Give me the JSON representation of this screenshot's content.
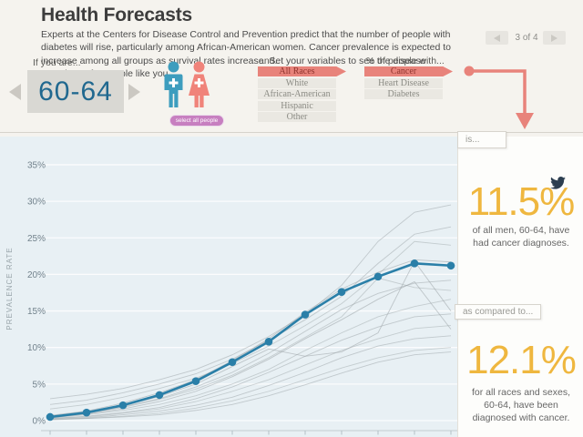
{
  "header": {
    "title": "Health Forecasts",
    "description": "Experts at the Centers for Disease Control and Prevention predict that the number of people with diabetes will rise, particularly among African-American women. Cancer prevalence is expected to increase among all groups as survival rates increase. Set your variables to see the disease prevalence for people like you.",
    "pagination": {
      "label": "3 of 4",
      "prev_icon": "chevron-left",
      "next_icon": "chevron-right"
    }
  },
  "controls": {
    "age": {
      "label": "If you are...",
      "value": "60-64",
      "prev_icon": "chevron-left",
      "next_icon": "chevron-right"
    },
    "people": {
      "button_label": "select all people",
      "icons": [
        "male-figure",
        "female-figure"
      ]
    },
    "race": {
      "label": "and..",
      "options": [
        "All Races",
        "White",
        "African-American",
        "Hispanic",
        "Other"
      ],
      "selected": "All Races"
    },
    "disease": {
      "label": "% of people with...",
      "options": [
        "Cancer",
        "Heart Disease",
        "Diabetes"
      ],
      "selected": "Cancer"
    }
  },
  "results": {
    "is_label": "is...",
    "primary_value": "11.5%",
    "primary_caption": "of all men, 60-64, have had cancer diagnoses.",
    "compare_label": "as compared to...",
    "secondary_value": "12.1%",
    "secondary_caption": "for all races and sexes, 60-64, have been diagnosed with cancer.",
    "share_icon": "twitter-bird"
  },
  "colors": {
    "accent_salmon": "#e8837b",
    "selected_option_text": "#8e332c",
    "highlight_blue": "#2a7fa8",
    "value_yellow": "#efb73f",
    "male_blue": "#3d9dbe",
    "female_salmon": "#f0837a",
    "select_all_purple": "#c77fc0",
    "age_text_blue": "#20688f",
    "chart_background": "#e8f0f4",
    "background_line_gray": "#9aa2a5"
  },
  "chart_data": {
    "type": "line",
    "ylabel": "PREVALENCE RATE",
    "ylim": [
      0,
      37
    ],
    "ytick_values": [
      0,
      5,
      10,
      15,
      20,
      25,
      30,
      35
    ],
    "x_count": 12,
    "x_tick_labels": [],
    "grid": "horizontal-white",
    "series": [
      {
        "name": "selected: men, 60-64, All Races, Cancer",
        "color": "#2a7fa8",
        "highlighted": true,
        "values": [
          0.5,
          1.1,
          2.1,
          3.5,
          5.4,
          8.0,
          10.8,
          14.5,
          17.6,
          19.7,
          21.5,
          21.2
        ]
      }
    ],
    "background_series": [
      {
        "values": [
          3.0,
          3.6,
          4.4,
          5.6,
          7.0,
          9.0,
          11.5,
          14.5,
          18.5,
          24.5,
          28.5,
          29.5
        ],
        "opacity": 0.5
      },
      {
        "values": [
          2.2,
          2.8,
          3.8,
          5.0,
          6.4,
          8.4,
          11.0,
          13.8,
          17.0,
          21.5,
          25.5,
          26.5
        ],
        "opacity": 0.5
      },
      {
        "values": [
          1.6,
          2.2,
          3.2,
          4.4,
          5.8,
          7.8,
          10.2,
          13.0,
          16.0,
          20.0,
          24.5,
          24.0
        ],
        "opacity": 0.45
      },
      {
        "values": [
          0.7,
          1.3,
          2.4,
          3.8,
          5.6,
          8.2,
          11.2,
          14.8,
          18.0,
          20.3,
          22.0,
          21.7
        ],
        "opacity": 0.55
      },
      {
        "values": [
          0.5,
          1.0,
          1.9,
          3.0,
          4.6,
          6.6,
          9.2,
          12.2,
          15.2,
          17.4,
          18.8,
          19.2
        ],
        "opacity": 0.5
      },
      {
        "values": [
          0.4,
          0.9,
          1.6,
          2.6,
          4.0,
          6.0,
          8.4,
          11.2,
          13.8,
          16.6,
          19.0,
          12.5
        ],
        "opacity": 0.55
      },
      {
        "values": [
          0.4,
          0.8,
          1.4,
          2.2,
          3.4,
          5.0,
          7.0,
          9.6,
          12.0,
          14.2,
          15.6,
          16.6
        ],
        "opacity": 0.45
      },
      {
        "values": [
          0.3,
          0.6,
          1.1,
          1.8,
          3.0,
          4.6,
          6.6,
          8.8,
          11.0,
          12.8,
          14.2,
          14.6
        ],
        "opacity": 0.5
      },
      {
        "values": [
          0.3,
          0.5,
          1.0,
          1.6,
          2.6,
          4.0,
          5.6,
          7.6,
          9.6,
          11.2,
          12.6,
          13.0
        ],
        "opacity": 0.45
      },
      {
        "values": [
          0.2,
          0.4,
          0.8,
          1.3,
          2.1,
          3.2,
          4.8,
          6.6,
          8.6,
          10.2,
          11.2,
          11.6
        ],
        "opacity": 0.5
      },
      {
        "values": [
          0.2,
          0.3,
          0.6,
          1.0,
          1.7,
          2.7,
          4.0,
          5.6,
          7.2,
          8.6,
          9.6,
          10.0
        ],
        "opacity": 0.45
      },
      {
        "values": [
          0.1,
          0.3,
          0.5,
          0.8,
          1.4,
          2.2,
          3.4,
          4.9,
          6.5,
          8.0,
          9.0,
          9.4
        ],
        "opacity": 0.5
      },
      {
        "values": [
          0.6,
          1.1,
          2.0,
          3.3,
          5.0,
          7.4,
          9.8,
          8.8,
          9.4,
          12.0,
          21.8,
          15.0
        ],
        "opacity": 0.55
      },
      {
        "values": [
          0.5,
          1.0,
          1.8,
          2.9,
          4.3,
          6.2,
          8.6,
          11.4,
          14.2,
          19.5,
          18.2,
          17.8
        ],
        "opacity": 0.45
      }
    ]
  }
}
